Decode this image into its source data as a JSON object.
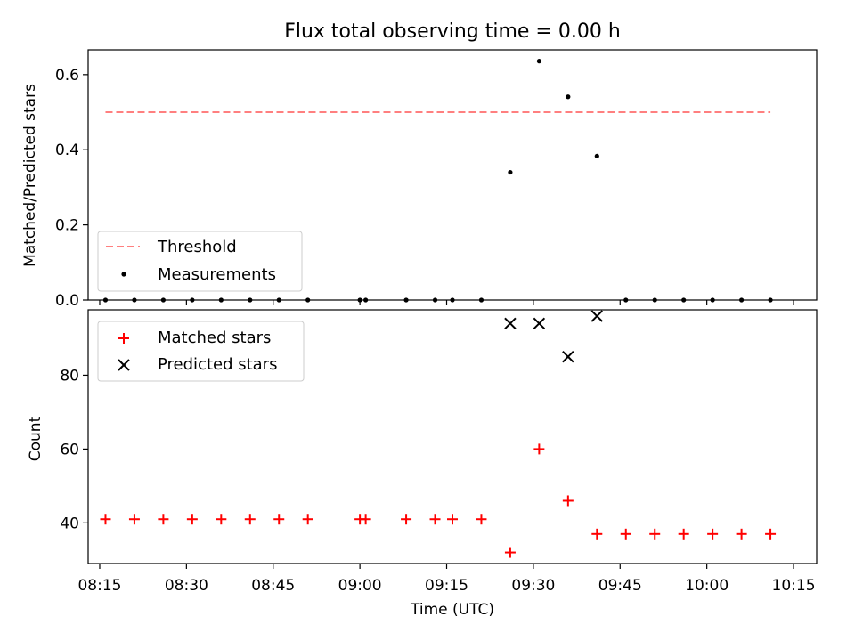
{
  "chart_data": [
    {
      "type": "scatter",
      "title": "Flux total observing time = 0.00 h",
      "ylabel": "Matched/Predicted stars",
      "xlabel": "",
      "ylim": [
        0,
        0.666
      ],
      "yticks": [
        0.0,
        0.2,
        0.4,
        0.6
      ],
      "ytick_labels": [
        "0.0",
        "0.2",
        "0.4",
        "0.6"
      ],
      "legend_position": "lower-left",
      "threshold": {
        "name": "Threshold",
        "value": 0.5,
        "color": "#ff7f7f",
        "x_from": "08:16",
        "x_to": "10:11"
      },
      "series": [
        {
          "name": "Measurements",
          "color": "#000000",
          "x": [
            "08:16",
            "08:21",
            "08:26",
            "08:31",
            "08:36",
            "08:41",
            "08:46",
            "08:51",
            "09:00",
            "09:01",
            "09:08",
            "09:13",
            "09:16",
            "09:21",
            "09:26",
            "09:31",
            "09:36",
            "09:41",
            "09:46",
            "09:51",
            "09:56",
            "10:01",
            "10:06",
            "10:11"
          ],
          "y": [
            0,
            0,
            0,
            0,
            0,
            0,
            0,
            0,
            0,
            0,
            0,
            0,
            0,
            0,
            0.34,
            0.636,
            0.541,
            0.383,
            0,
            0,
            0,
            0,
            0,
            0
          ]
        }
      ]
    },
    {
      "type": "scatter",
      "title": "",
      "ylabel": "Count",
      "xlabel": "Time (UTC)",
      "ylim": [
        29,
        97.7
      ],
      "yticks": [
        40,
        60,
        80
      ],
      "ytick_labels": [
        "40",
        "60",
        "80"
      ],
      "xlim": [
        "08:13",
        "10:19"
      ],
      "xticks": [
        "08:15",
        "08:30",
        "08:45",
        "09:00",
        "09:15",
        "09:30",
        "09:45",
        "10:00",
        "10:15"
      ],
      "legend_position": "top-left",
      "series": [
        {
          "name": "Matched stars",
          "marker": "plus",
          "color": "#ff0000",
          "x": [
            "08:16",
            "08:21",
            "08:26",
            "08:31",
            "08:36",
            "08:41",
            "08:46",
            "08:51",
            "09:00",
            "09:01",
            "09:08",
            "09:13",
            "09:16",
            "09:21",
            "09:26",
            "09:31",
            "09:36",
            "09:41",
            "09:46",
            "09:51",
            "09:56",
            "10:01",
            "10:06",
            "10:11"
          ],
          "y": [
            41,
            41,
            41,
            41,
            41,
            41,
            41,
            41,
            41,
            41,
            41,
            41,
            41,
            41,
            32,
            60,
            46,
            37,
            37,
            37,
            37,
            37,
            37,
            37
          ]
        },
        {
          "name": "Predicted stars",
          "marker": "x",
          "color": "#000000",
          "x": [
            "09:26",
            "09:31",
            "09:36",
            "09:41"
          ],
          "y": [
            94,
            94,
            85,
            96
          ]
        }
      ]
    }
  ]
}
